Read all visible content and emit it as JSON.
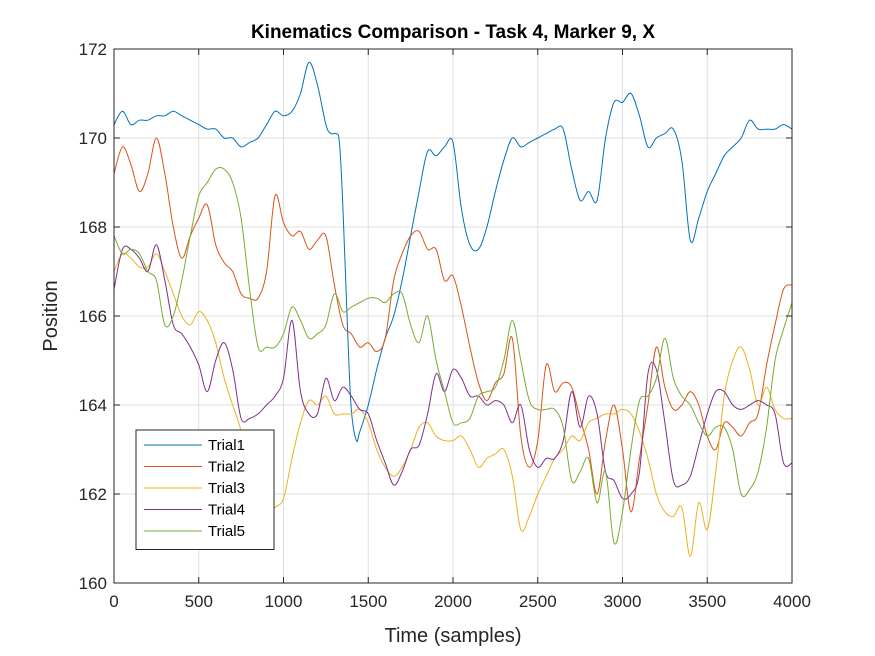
{
  "chart_data": {
    "type": "line",
    "title": "Kinematics Comparison - Task 4, Marker 9, X",
    "xlabel": "Time (samples)",
    "ylabel": "Position",
    "xlim": [
      0,
      4000
    ],
    "ylim": [
      160,
      172
    ],
    "xticks": [
      0,
      500,
      1000,
      1500,
      2000,
      2500,
      3000,
      3500,
      4000
    ],
    "yticks": [
      160,
      162,
      164,
      166,
      168,
      170,
      172
    ],
    "grid": true,
    "legend_position": "bottom-left",
    "series": [
      {
        "name": "Trial1",
        "color": "#0072BD",
        "x": [
          0,
          50,
          100,
          150,
          200,
          250,
          300,
          350,
          400,
          450,
          500,
          550,
          600,
          650,
          700,
          750,
          800,
          850,
          900,
          950,
          1000,
          1050,
          1100,
          1150,
          1200,
          1250,
          1280,
          1310,
          1330,
          1350,
          1380,
          1400,
          1430,
          1450,
          1500,
          1550,
          1600,
          1650,
          1700,
          1750,
          1800,
          1850,
          1900,
          1950,
          2000,
          2050,
          2100,
          2150,
          2200,
          2250,
          2300,
          2350,
          2400,
          2450,
          2500,
          2550,
          2600,
          2650,
          2700,
          2750,
          2800,
          2850,
          2900,
          2950,
          3000,
          3050,
          3100,
          3150,
          3200,
          3250,
          3300,
          3350,
          3400,
          3450,
          3500,
          3550,
          3600,
          3650,
          3700,
          3750,
          3800,
          3850,
          3900,
          3950,
          4000
        ],
        "y": [
          170.3,
          170.6,
          170.3,
          170.4,
          170.4,
          170.5,
          170.5,
          170.6,
          170.5,
          170.4,
          170.3,
          170.2,
          170.2,
          170.0,
          170.0,
          169.8,
          169.9,
          170.0,
          170.3,
          170.6,
          170.5,
          170.6,
          171.0,
          171.7,
          171.2,
          170.3,
          170.1,
          170.1,
          169.9,
          168.5,
          165.5,
          163.9,
          163.2,
          163.4,
          164.0,
          164.8,
          165.5,
          166.0,
          166.8,
          167.8,
          168.8,
          169.7,
          169.6,
          169.8,
          169.9,
          168.4,
          167.6,
          167.5,
          168.0,
          168.8,
          169.5,
          170.0,
          169.8,
          169.9,
          170.0,
          170.1,
          170.2,
          170.2,
          169.3,
          168.6,
          168.8,
          168.6,
          170.0,
          170.8,
          170.8,
          171.0,
          170.5,
          169.8,
          170.0,
          170.1,
          170.2,
          169.5,
          167.7,
          168.2,
          168.8,
          169.2,
          169.6,
          169.8,
          170.0,
          170.4,
          170.2,
          170.2,
          170.2,
          170.3,
          170.2
        ]
      },
      {
        "name": "Trial2",
        "color": "#D95319",
        "x": [
          0,
          50,
          100,
          150,
          200,
          250,
          300,
          350,
          400,
          450,
          500,
          550,
          600,
          650,
          700,
          750,
          800,
          850,
          900,
          950,
          1000,
          1050,
          1100,
          1150,
          1200,
          1250,
          1300,
          1350,
          1400,
          1450,
          1500,
          1550,
          1600,
          1650,
          1700,
          1750,
          1800,
          1850,
          1900,
          1950,
          2000,
          2050,
          2100,
          2150,
          2200,
          2250,
          2300,
          2350,
          2400,
          2450,
          2500,
          2550,
          2600,
          2650,
          2700,
          2750,
          2800,
          2850,
          2900,
          2950,
          3000,
          3050,
          3100,
          3150,
          3200,
          3250,
          3300,
          3350,
          3400,
          3450,
          3500,
          3550,
          3600,
          3650,
          3700,
          3750,
          3800,
          3850,
          3900,
          3950,
          4000
        ],
        "y": [
          169.2,
          169.8,
          169.4,
          168.8,
          169.2,
          170.0,
          169.2,
          168.0,
          167.3,
          167.8,
          168.2,
          168.5,
          167.6,
          167.2,
          167.0,
          166.5,
          166.4,
          166.4,
          167.0,
          168.7,
          168.1,
          167.8,
          167.9,
          167.5,
          167.7,
          167.8,
          166.7,
          165.8,
          165.6,
          165.3,
          165.4,
          165.2,
          165.5,
          166.8,
          167.4,
          167.8,
          167.9,
          167.5,
          167.5,
          166.8,
          166.9,
          166.2,
          165.3,
          164.5,
          164.1,
          164.5,
          164.7,
          165.5,
          163.3,
          162.6,
          163.2,
          164.9,
          164.3,
          164.5,
          164.4,
          163.7,
          163.0,
          162.0,
          163.2,
          164.0,
          163.0,
          161.6,
          162.8,
          164.0,
          165.3,
          164.4,
          163.9,
          164.0,
          164.3,
          164.0,
          163.3,
          163.0,
          163.6,
          163.5,
          163.3,
          163.6,
          163.8,
          164.9,
          165.8,
          166.6,
          166.7
        ]
      },
      {
        "name": "Trial3",
        "color": "#EDB120",
        "x": [
          0,
          50,
          100,
          150,
          200,
          250,
          300,
          350,
          400,
          450,
          500,
          550,
          600,
          650,
          700,
          750,
          800,
          850,
          900,
          950,
          1000,
          1050,
          1100,
          1150,
          1200,
          1250,
          1300,
          1350,
          1400,
          1450,
          1500,
          1550,
          1600,
          1650,
          1700,
          1750,
          1800,
          1850,
          1900,
          1950,
          2000,
          2050,
          2100,
          2150,
          2200,
          2250,
          2300,
          2350,
          2400,
          2450,
          2500,
          2550,
          2600,
          2650,
          2700,
          2750,
          2800,
          2850,
          2900,
          2950,
          3000,
          3050,
          3100,
          3150,
          3200,
          3250,
          3300,
          3350,
          3400,
          3450,
          3500,
          3550,
          3600,
          3650,
          3700,
          3750,
          3800,
          3850,
          3900,
          3950,
          4000
        ],
        "y": [
          167.0,
          167.4,
          167.3,
          167.1,
          167.1,
          167.4,
          167.0,
          166.5,
          166.0,
          165.8,
          166.1,
          165.9,
          165.4,
          164.6,
          164.0,
          163.4,
          162.3,
          161.8,
          161.5,
          161.7,
          161.9,
          162.8,
          163.6,
          164.1,
          164.0,
          164.2,
          163.8,
          163.8,
          163.8,
          163.9,
          163.6,
          163.0,
          162.6,
          162.4,
          162.6,
          163.0,
          163.5,
          163.6,
          163.3,
          163.2,
          163.2,
          163.3,
          163.0,
          162.6,
          162.8,
          162.9,
          163.0,
          162.4,
          161.2,
          161.5,
          162.0,
          162.4,
          162.8,
          163.0,
          163.3,
          163.2,
          163.6,
          163.7,
          163.8,
          163.8,
          163.9,
          163.8,
          163.4,
          162.8,
          162.0,
          161.6,
          161.5,
          161.7,
          160.6,
          161.8,
          161.2,
          162.5,
          164.2,
          165.0,
          165.3,
          164.8,
          164.0,
          164.4,
          163.9,
          163.7,
          163.7
        ]
      },
      {
        "name": "Trial4",
        "color": "#7E2F8E",
        "x": [
          0,
          50,
          100,
          150,
          200,
          250,
          300,
          350,
          400,
          450,
          500,
          550,
          600,
          650,
          700,
          750,
          800,
          850,
          900,
          950,
          1000,
          1050,
          1100,
          1150,
          1200,
          1250,
          1300,
          1350,
          1400,
          1450,
          1500,
          1550,
          1600,
          1650,
          1700,
          1750,
          1800,
          1850,
          1900,
          1950,
          2000,
          2050,
          2100,
          2150,
          2200,
          2250,
          2300,
          2350,
          2400,
          2450,
          2500,
          2550,
          2600,
          2650,
          2700,
          2750,
          2800,
          2850,
          2900,
          2950,
          3000,
          3050,
          3100,
          3150,
          3200,
          3250,
          3300,
          3350,
          3400,
          3450,
          3500,
          3550,
          3600,
          3650,
          3700,
          3750,
          3800,
          3850,
          3900,
          3950,
          4000
        ],
        "y": [
          166.6,
          167.5,
          167.5,
          167.3,
          167.0,
          167.6,
          166.8,
          165.8,
          165.6,
          165.3,
          164.9,
          164.3,
          165.0,
          165.4,
          164.8,
          163.7,
          163.7,
          163.8,
          164.0,
          164.2,
          164.6,
          165.9,
          164.3,
          163.8,
          163.8,
          164.6,
          164.1,
          164.4,
          164.2,
          163.9,
          163.8,
          163.2,
          162.7,
          162.2,
          162.5,
          163.0,
          163.1,
          163.8,
          164.7,
          164.3,
          164.8,
          164.6,
          164.2,
          164.2,
          164.0,
          164.1,
          164.0,
          163.6,
          164.0,
          163.0,
          162.6,
          162.8,
          162.8,
          163.2,
          164.3,
          163.5,
          164.2,
          163.8,
          162.5,
          162.3,
          161.9,
          162.0,
          162.5,
          164.7,
          164.8,
          163.6,
          162.3,
          162.2,
          162.4,
          163.1,
          163.8,
          164.3,
          164.3,
          164.0,
          163.9,
          164.0,
          164.1,
          164.0,
          163.8,
          162.7,
          162.7
        ]
      },
      {
        "name": "Trial5",
        "color": "#77AC30",
        "x": [
          0,
          50,
          100,
          150,
          200,
          250,
          300,
          350,
          400,
          450,
          500,
          550,
          600,
          650,
          700,
          750,
          800,
          850,
          900,
          950,
          1000,
          1050,
          1100,
          1150,
          1200,
          1250,
          1300,
          1350,
          1400,
          1450,
          1500,
          1550,
          1600,
          1650,
          1700,
          1750,
          1800,
          1850,
          1900,
          1950,
          2000,
          2050,
          2100,
          2150,
          2200,
          2250,
          2300,
          2350,
          2400,
          2450,
          2500,
          2550,
          2600,
          2650,
          2700,
          2750,
          2800,
          2850,
          2900,
          2950,
          3000,
          3050,
          3100,
          3150,
          3200,
          3250,
          3300,
          3350,
          3400,
          3450,
          3500,
          3550,
          3600,
          3650,
          3700,
          3750,
          3800,
          3850,
          3900,
          3950,
          4000
        ],
        "y": [
          167.8,
          167.4,
          167.5,
          167.4,
          167.0,
          166.8,
          165.8,
          166.0,
          166.8,
          167.8,
          168.7,
          169.0,
          169.3,
          169.3,
          169.0,
          168.2,
          166.6,
          165.3,
          165.3,
          165.3,
          165.6,
          166.2,
          165.9,
          165.5,
          165.6,
          165.8,
          166.5,
          166.1,
          166.2,
          166.3,
          166.4,
          166.4,
          166.3,
          166.5,
          166.5,
          165.8,
          165.4,
          166.0,
          165.0,
          164.3,
          163.6,
          163.6,
          163.7,
          164.2,
          164.3,
          164.4,
          165.0,
          165.9,
          165.0,
          164.1,
          163.9,
          163.9,
          163.9,
          163.5,
          162.3,
          162.5,
          162.8,
          161.8,
          162.5,
          160.9,
          161.6,
          163.0,
          164.1,
          164.2,
          164.6,
          165.5,
          164.6,
          164.2,
          164.0,
          163.6,
          163.3,
          163.5,
          163.5,
          163.0,
          162.0,
          162.1,
          162.5,
          163.5,
          165.0,
          165.7,
          166.3
        ]
      }
    ]
  }
}
